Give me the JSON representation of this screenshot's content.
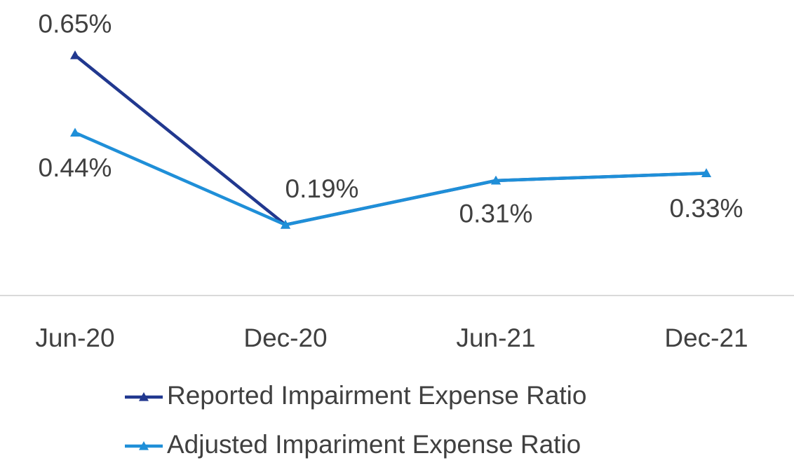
{
  "chart_data": {
    "type": "line",
    "categories": [
      "Jun-20",
      "Dec-20",
      "Jun-21",
      "Dec-21"
    ],
    "series": [
      {
        "name": "Reported Impairment Expense Ratio",
        "color": "#21388f",
        "values": [
          0.65,
          0.19,
          0.31,
          0.33
        ],
        "value_labels": [
          "0.65%",
          "0.19%",
          "0.31%",
          "0.33%"
        ]
      },
      {
        "name": "Adjusted Impariment Expense Ratio",
        "color": "#1f8fd8",
        "values": [
          0.44,
          0.19,
          0.31,
          0.33
        ],
        "value_labels": [
          "0.44%",
          null,
          null,
          null
        ]
      }
    ],
    "ylim": [
      0,
      0.8
    ],
    "legend": "bottom"
  }
}
